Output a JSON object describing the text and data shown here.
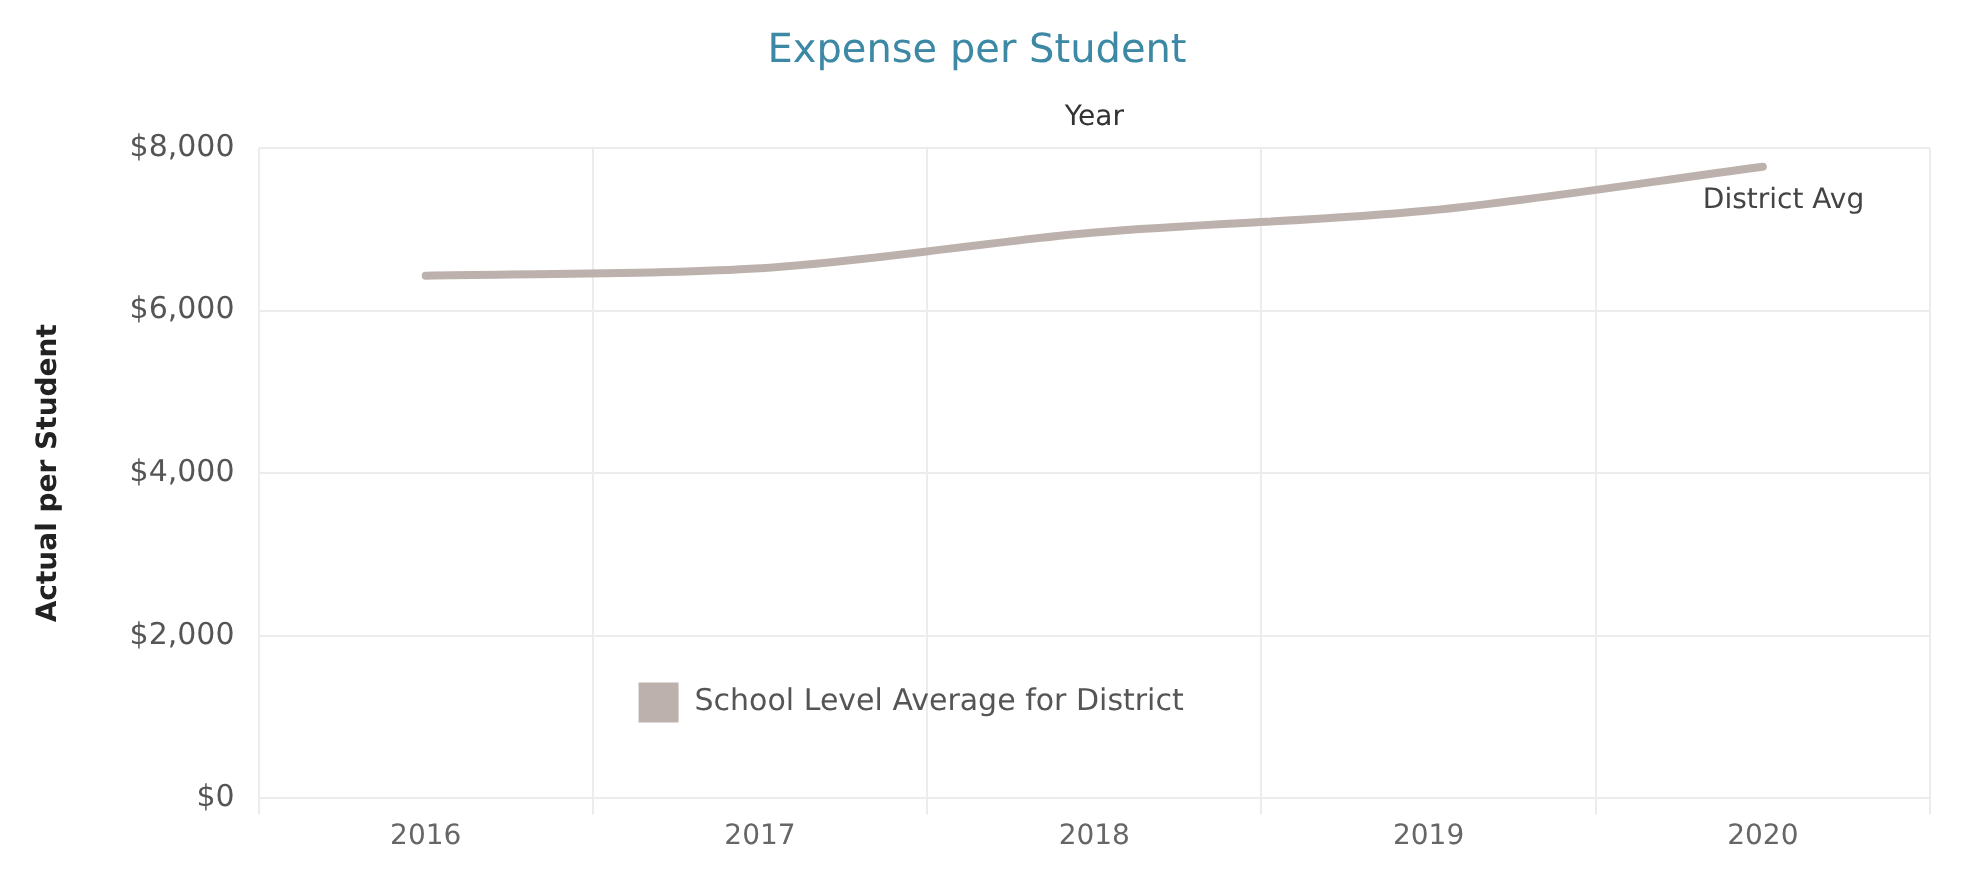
{
  "chart_data": {
    "type": "line",
    "title": "Expense per Student",
    "xlabel": "Year",
    "ylabel": "Actual per Student",
    "categories": [
      "2016",
      "2017",
      "2018",
      "2019",
      "2020"
    ],
    "series": [
      {
        "name": "School Level Average for District",
        "color": "#bcb1ac",
        "values": [
          6430,
          6520,
          6960,
          7230,
          7770
        ]
      }
    ],
    "ylim": [
      0,
      8000
    ],
    "yticks": [
      {
        "value": 0,
        "label": "$0"
      },
      {
        "value": 2000,
        "label": "$2,000"
      },
      {
        "value": 4000,
        "label": "$4,000"
      },
      {
        "value": 6000,
        "label": "$6,000"
      },
      {
        "value": 8000,
        "label": "$8,000"
      }
    ],
    "annotations": [
      {
        "text": "District Avg",
        "x": "2020",
        "y": 7770
      }
    ],
    "grid": true,
    "legend": "bottom left",
    "marker": "none",
    "line_style": "solid"
  }
}
